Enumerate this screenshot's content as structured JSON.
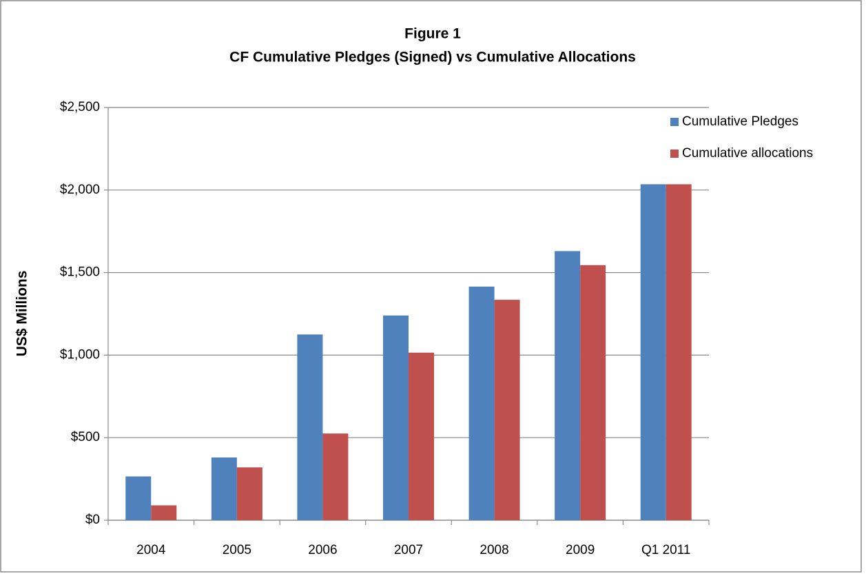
{
  "chart_data": {
    "type": "bar",
    "title": "Figure 1",
    "subtitle": "CF Cumulative Pledges (Signed) vs Cumulative Allocations",
    "y_label": "US$ Millions",
    "categories": [
      "2004",
      "2005",
      "2006",
      "2007",
      "2008",
      "2009",
      "Q1 2011"
    ],
    "series": [
      {
        "name": "Cumulative Pledges",
        "color": "#4f81bd",
        "values": [
          265,
          380,
          1125,
          1240,
          1415,
          1630,
          2035
        ]
      },
      {
        "name": "Cumulative allocations",
        "color": "#c0504d",
        "values": [
          90,
          320,
          525,
          1015,
          1335,
          1545,
          2035
        ]
      }
    ],
    "ylim": [
      0,
      2500
    ],
    "yticks": [
      {
        "value": 0,
        "label": "$0"
      },
      {
        "value": 500,
        "label": "$500"
      },
      {
        "value": 1000,
        "label": "$1,000"
      },
      {
        "value": 1500,
        "label": "$1,500"
      },
      {
        "value": 2000,
        "label": "$2,000"
      },
      {
        "value": 2500,
        "label": "$2,500"
      }
    ],
    "grid": true,
    "legend": "top-right"
  }
}
